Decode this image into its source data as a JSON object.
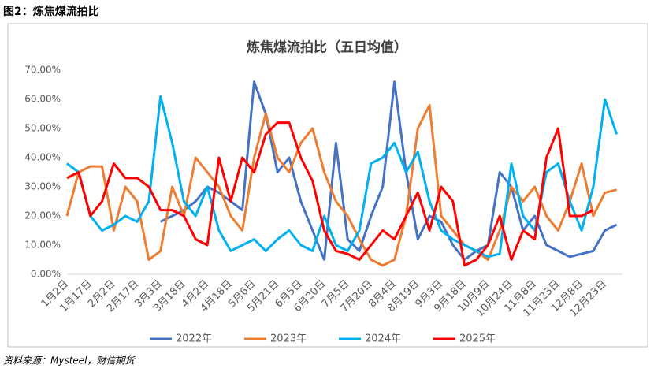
{
  "header": "图2：炼焦煤流拍比",
  "source": "资料来源：Mysteel，财信期货",
  "chart_data": {
    "type": "line",
    "title": "炼焦煤流拍比（五日均值）",
    "categories": [
      "1月2日",
      null,
      "1月17日",
      null,
      "2月2日",
      null,
      "2月17日",
      null,
      "3月3日",
      null,
      "3月18日",
      null,
      "4月2日",
      null,
      "4月18日",
      null,
      "5月6日",
      null,
      "5月21日",
      null,
      "6月5日",
      null,
      "6月20日",
      null,
      "7月5日",
      null,
      "7月20日",
      null,
      "8月4日",
      null,
      "8月19日",
      null,
      "9月3日",
      null,
      "9月18日",
      null,
      "10月9日",
      null,
      "10月24日",
      null,
      "11月8日",
      null,
      "11月23日",
      null,
      "12月8日",
      null,
      "12月23日",
      null
    ],
    "series": [
      {
        "name": "2022年",
        "color": "#4472c4",
        "values": [
          null,
          null,
          null,
          null,
          null,
          null,
          null,
          null,
          18,
          20,
          22,
          25,
          30,
          28,
          25,
          22,
          66,
          55,
          35,
          40,
          25,
          15,
          5,
          45,
          12,
          8,
          20,
          30,
          66,
          35,
          12,
          20,
          18,
          10,
          5,
          8,
          10,
          35,
          30,
          15,
          20,
          10,
          8,
          6,
          7,
          8,
          15,
          17
        ]
      },
      {
        "name": "2023年",
        "color": "#ed7d31",
        "values": [
          20,
          35,
          37,
          37,
          15,
          30,
          25,
          5,
          8,
          30,
          20,
          40,
          35,
          30,
          20,
          15,
          40,
          55,
          40,
          35,
          45,
          50,
          35,
          25,
          20,
          12,
          5,
          3,
          5,
          20,
          50,
          58,
          20,
          15,
          10,
          8,
          5,
          15,
          30,
          25,
          30,
          20,
          15,
          25,
          38,
          20,
          28,
          29
        ]
      },
      {
        "name": "2024年",
        "color": "#00b0f0",
        "values": [
          38,
          35,
          20,
          15,
          17,
          20,
          18,
          25,
          61,
          45,
          25,
          20,
          30,
          15,
          8,
          10,
          12,
          8,
          12,
          15,
          10,
          8,
          20,
          10,
          8,
          15,
          38,
          40,
          45,
          35,
          42,
          25,
          15,
          12,
          10,
          8,
          6,
          7,
          38,
          20,
          15,
          35,
          38,
          25,
          15,
          30,
          60,
          48
        ]
      },
      {
        "name": "2025年",
        "color": "#ff0000",
        "values": [
          33,
          35,
          20,
          25,
          38,
          33,
          33,
          30,
          22,
          22,
          20,
          12,
          10,
          40,
          25,
          40,
          35,
          48,
          52,
          52,
          40,
          32,
          15,
          8,
          7,
          5,
          10,
          15,
          12,
          20,
          28,
          15,
          30,
          25,
          3,
          5,
          10,
          20,
          5,
          15,
          12,
          40,
          50,
          20,
          20,
          22,
          null,
          null
        ]
      }
    ],
    "ylim": [
      0,
      70
    ],
    "yticks": [
      {
        "value": 0,
        "label": "0.00%"
      },
      {
        "value": 10,
        "label": "10.00%"
      },
      {
        "value": 20,
        "label": "20.00%"
      },
      {
        "value": 30,
        "label": "30.00%"
      },
      {
        "value": 40,
        "label": "40.00%"
      },
      {
        "value": 50,
        "label": "50.00%"
      },
      {
        "value": 60,
        "label": "60.00%"
      },
      {
        "value": 70,
        "label": "70.00%"
      }
    ],
    "legend": "bottom"
  }
}
